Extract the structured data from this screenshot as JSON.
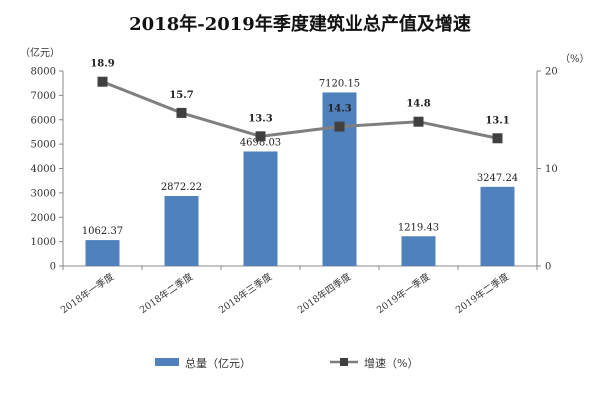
{
  "chart_data": {
    "type": "bar",
    "title": "2018年-2019年季度建筑业总产值及增速",
    "categories": [
      "2018年一季度",
      "2018年二季度",
      "2018年三季度",
      "2018年四季度",
      "2019年一季度",
      "2019年二季度"
    ],
    "series": [
      {
        "name": "总量（亿元）",
        "type": "bar",
        "axis": "left",
        "values": [
          1062.37,
          2872.22,
          4698.03,
          7120.15,
          1219.43,
          3247.24
        ],
        "labels": [
          "1062.37",
          "2872.22",
          "4698.03",
          "7120.15",
          "1219.43",
          "3247.24"
        ],
        "color": "#4f81bd"
      },
      {
        "name": "增速（%）",
        "type": "line",
        "axis": "right",
        "values": [
          18.9,
          15.7,
          13.3,
          14.3,
          14.8,
          13.1
        ],
        "labels": [
          "18.9",
          "15.7",
          "13.3",
          "14.3",
          "14.8",
          "13.1"
        ],
        "color": "#7f7f7f"
      }
    ],
    "y_left": {
      "unit": "（亿元）",
      "range": [
        0,
        8000
      ],
      "ticks": [
        "0",
        "1000",
        "2000",
        "3000",
        "4000",
        "5000",
        "6000",
        "7000",
        "8000"
      ]
    },
    "y_right": {
      "unit": "（%）",
      "range": [
        0,
        20
      ],
      "ticks": [
        "0",
        "10",
        "20"
      ]
    },
    "grid": false,
    "legend": "bottom"
  }
}
